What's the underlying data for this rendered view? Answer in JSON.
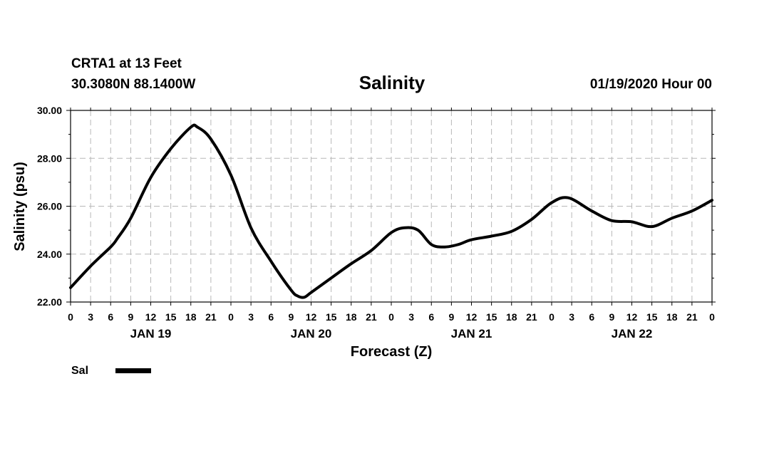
{
  "header": {
    "station": "CRTA1 at 13 Feet",
    "coords": "30.3080N 88.1400W",
    "timestamp": "01/19/2020 Hour 00"
  },
  "chart_data": {
    "type": "line",
    "title": "Salinity",
    "xlabel": "Forecast (Z)",
    "ylabel": "Salinity (psu)",
    "ylim": [
      22,
      30
    ],
    "xlim": [
      0,
      96
    ],
    "x_units": "hours since 01/19/2020 00Z",
    "yticks": [
      "22.00",
      "24.00",
      "26.00",
      "28.00",
      "30.00"
    ],
    "ytick_values": [
      22,
      24,
      26,
      28,
      30
    ],
    "xtick_labels": [
      "0",
      "3",
      "6",
      "9",
      "12",
      "15",
      "18",
      "21",
      "0",
      "3",
      "6",
      "9",
      "12",
      "15",
      "18",
      "21",
      "0",
      "3",
      "6",
      "9",
      "12",
      "15",
      "18",
      "21",
      "0",
      "3",
      "6",
      "9",
      "12",
      "15",
      "18",
      "21",
      "0"
    ],
    "day_labels": [
      {
        "label": "JAN 19",
        "hour": 12
      },
      {
        "label": "JAN 20",
        "hour": 36
      },
      {
        "label": "JAN 21",
        "hour": 60
      },
      {
        "label": "JAN 22",
        "hour": 84
      }
    ],
    "grid": true,
    "legend": "bottom-left",
    "series": [
      {
        "name": "Sal",
        "color": "#000000",
        "x": [
          0,
          3,
          6,
          7,
          9,
          12,
          15,
          18,
          19,
          21,
          24,
          27,
          30,
          33,
          34,
          35,
          36,
          39,
          42,
          45,
          48,
          50,
          52,
          54,
          56,
          58,
          60,
          63,
          66,
          69,
          72,
          74.5,
          78,
          81,
          84,
          87,
          90,
          93,
          96
        ],
        "values": [
          22.6,
          23.5,
          24.3,
          24.65,
          25.5,
          27.2,
          28.4,
          29.3,
          29.3,
          28.8,
          27.3,
          25.1,
          23.7,
          22.5,
          22.25,
          22.2,
          22.4,
          23.0,
          23.6,
          24.15,
          24.9,
          25.1,
          25.0,
          24.4,
          24.3,
          24.4,
          24.6,
          24.75,
          24.95,
          25.45,
          26.15,
          26.35,
          25.8,
          25.4,
          25.35,
          25.15,
          25.5,
          25.8,
          26.25
        ]
      }
    ]
  },
  "legend": {
    "label": "Sal"
  }
}
